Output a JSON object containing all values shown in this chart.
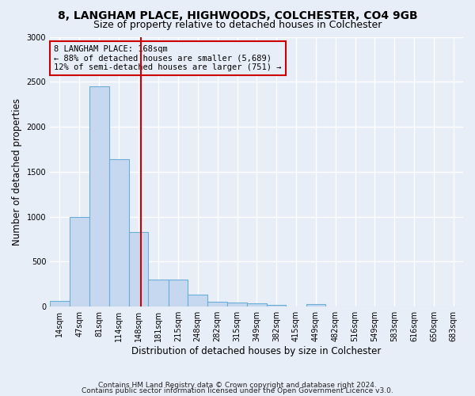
{
  "title_line1": "8, LANGHAM PLACE, HIGHWOODS, COLCHESTER, CO4 9GB",
  "title_line2": "Size of property relative to detached houses in Colchester",
  "xlabel": "Distribution of detached houses by size in Colchester",
  "ylabel": "Number of detached properties",
  "footnote1": "Contains HM Land Registry data © Crown copyright and database right 2024.",
  "footnote2": "Contains public sector information licensed under the Open Government Licence v3.0.",
  "annotation_line1": "8 LANGHAM PLACE: 168sqm",
  "annotation_line2": "← 88% of detached houses are smaller (5,689)",
  "annotation_line3": "12% of semi-detached houses are larger (751) →",
  "bar_edges": [
    14,
    47,
    81,
    114,
    148,
    181,
    215,
    248,
    282,
    315,
    349,
    382,
    415,
    449,
    482,
    516,
    549,
    583,
    616,
    650,
    683
  ],
  "bar_heights": [
    60,
    1000,
    2450,
    1640,
    830,
    300,
    300,
    130,
    55,
    45,
    35,
    20,
    0,
    30,
    0,
    0,
    0,
    0,
    0,
    0,
    0
  ],
  "bar_color": "#c5d8f0",
  "bar_edgecolor": "#6aaed6",
  "vline_x": 168,
  "vline_color": "#cc0000",
  "ylim": [
    0,
    3000
  ],
  "yticks": [
    0,
    500,
    1000,
    1500,
    2000,
    2500,
    3000
  ],
  "background_color": "#e8eef8",
  "grid_color": "#ffffff",
  "title_fontsize": 10,
  "subtitle_fontsize": 9,
  "tick_fontsize": 7,
  "label_fontsize": 8.5,
  "footnote_fontsize": 6.5
}
